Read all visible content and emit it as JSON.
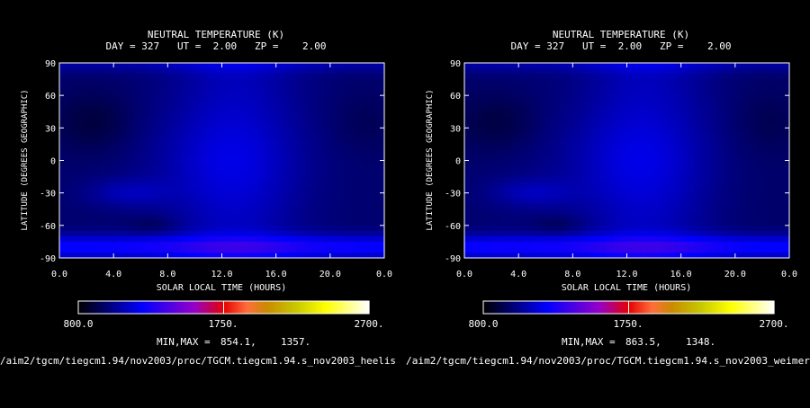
{
  "chart_data": [
    {
      "type": "heatmap",
      "title": "NEUTRAL TEMPERATURE (K)",
      "subtitle": "DAY = 327   UT =  2.00   ZP =    2.00",
      "xlabel": "SOLAR LOCAL TIME (HOURS)",
      "ylabel": "LATITUDE (DEGREES GEOGRAPHIC)",
      "xlim": [
        0,
        24
      ],
      "ylim": [
        -90,
        90
      ],
      "x_ticks": [
        "0.0",
        "4.0",
        "8.0",
        "12.0",
        "16.0",
        "20.0",
        "0.0"
      ],
      "y_ticks": [
        "-90",
        "-60",
        "-30",
        "0",
        "30",
        "60",
        "90"
      ],
      "colorbar": {
        "min_label": "800.0",
        "mid_label": "1750.",
        "max_label": "2700.",
        "min": 800,
        "mid": 1750,
        "max": 2700
      },
      "minmax_label": "MIN,MAX =",
      "min_value": "854.1,",
      "max_value": "1357.",
      "filepath": "/aim2/tgcm/tiegcm1.94/nov2003/proc/TGCM.tiegcm1.94.s_nov2003_heelis"
    },
    {
      "type": "heatmap",
      "title": "NEUTRAL TEMPERATURE (K)",
      "subtitle": "DAY = 327   UT =  2.00   ZP =    2.00",
      "xlabel": "SOLAR LOCAL TIME (HOURS)",
      "ylabel": "LATITUDE (DEGREES GEOGRAPHIC)",
      "xlim": [
        0,
        24
      ],
      "ylim": [
        -90,
        90
      ],
      "x_ticks": [
        "0.0",
        "4.0",
        "8.0",
        "12.0",
        "16.0",
        "20.0",
        "0.0"
      ],
      "y_ticks": [
        "-90",
        "-60",
        "-30",
        "0",
        "30",
        "60",
        "90"
      ],
      "colorbar": {
        "min_label": "800.0",
        "mid_label": "1750.",
        "max_label": "2700.",
        "min": 800,
        "mid": 1750,
        "max": 2700
      },
      "minmax_label": "MIN,MAX =",
      "min_value": "863.5,",
      "max_value": "1348.",
      "filepath": "/aim2/tgcm/tiegcm1.94/nov2003/proc/TGCM.tiegcm1.94.s_nov2003_weimer"
    }
  ]
}
